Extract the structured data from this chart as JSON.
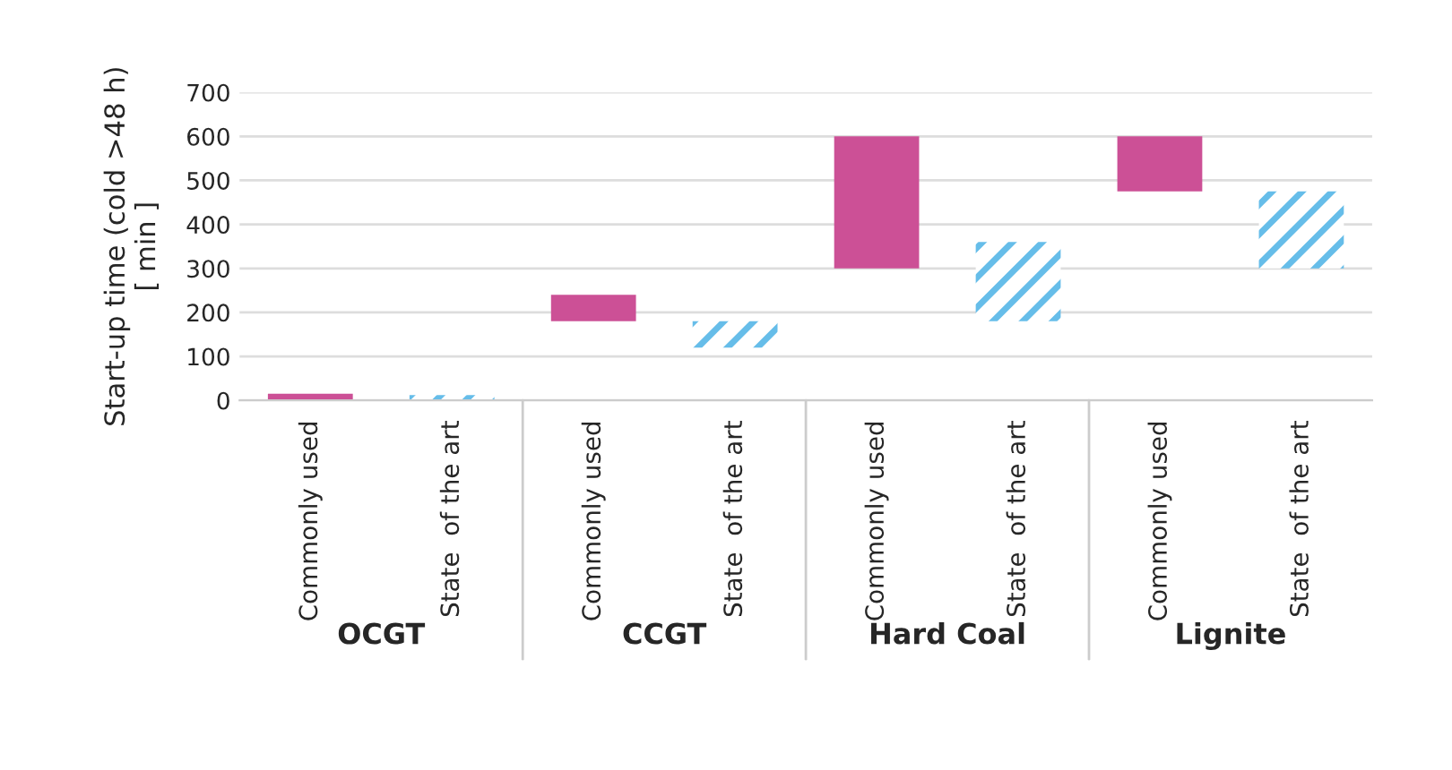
{
  "chart_data": {
    "type": "bar",
    "ylabel": "Start-up time (cold >48 h)\n[ min ]",
    "categories": [
      "Commonly used",
      "State  of the art",
      "Commonly used",
      "State  of the art",
      "Commonly used",
      "State  of the art",
      "Commonly used",
      "State  of the art"
    ],
    "base": [
      0,
      0,
      180,
      120,
      300,
      180,
      475,
      300
    ],
    "values": [
      15,
      12,
      60,
      60,
      300,
      180,
      125,
      175
    ],
    "colors": [
      "#cc5096",
      "#66bde9",
      "#cc5096",
      "#66bde9",
      "#cc5096",
      "#66bde9",
      "#cc5096",
      "#66bde9"
    ],
    "annotations": [
      "OCGT",
      "CCGT",
      "Hard Coal",
      "Lignite"
    ],
    "ylim": [
      0,
      700
    ],
    "yticks": [
      0,
      100,
      200,
      300,
      400,
      500,
      600,
      700
    ],
    "grid": "y",
    "legend": false
  }
}
